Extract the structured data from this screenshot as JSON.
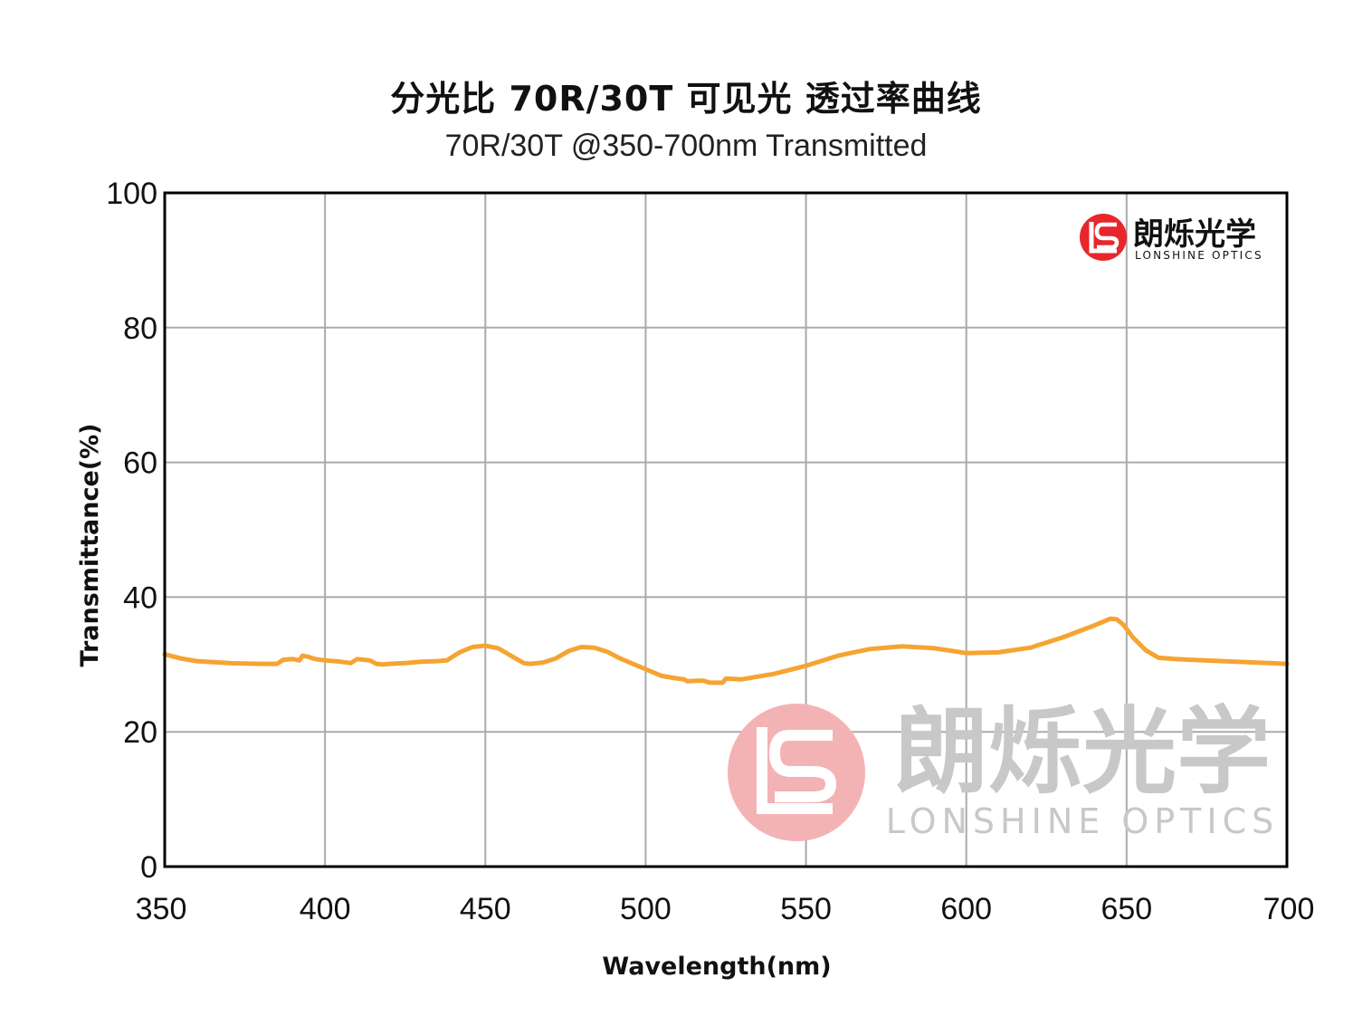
{
  "title": "分光比 70R/30T 可见光 透过率曲线",
  "subtitle": "70R/30T @350-700nm  Transmitted",
  "logo": {
    "name_cn": "朗烁光学",
    "name_en": "LONSHINE OPTICS"
  },
  "watermark": {
    "name_cn": "朗烁光学",
    "name_en": "LONSHINE OPTICS"
  },
  "colors": {
    "curve": "#f5a432",
    "logo_red": "#e8262b",
    "watermark_pink": "#f3b3b5",
    "watermark_gray": "#c8c8c8",
    "grid": "#aaaaaa"
  },
  "chart_data": {
    "type": "line",
    "xlabel": "Wavelength(nm)",
    "ylabel": "Transmittance(%)",
    "xlim": [
      350,
      700
    ],
    "ylim": [
      0,
      100
    ],
    "xticks": [
      350,
      400,
      450,
      500,
      550,
      600,
      650,
      700
    ],
    "yticks": [
      0,
      20,
      40,
      60,
      80,
      100
    ],
    "grid": true,
    "series": [
      {
        "x": [
          350,
          355,
          360,
          370,
          380,
          385,
          387,
          390,
          392,
          393,
          395,
          397,
          400,
          405,
          408,
          410,
          414,
          416,
          418,
          420,
          425,
          430,
          435,
          438,
          442,
          446,
          450,
          454,
          458,
          462,
          464,
          468,
          472,
          476,
          480,
          484,
          488,
          492,
          496,
          500,
          505,
          510,
          512,
          513,
          516,
          518,
          520,
          524,
          525,
          530,
          540,
          550,
          560,
          570,
          580,
          590,
          600,
          610,
          620,
          630,
          640,
          645,
          647,
          649,
          652,
          656,
          660,
          665,
          670,
          680,
          690,
          700
        ],
        "values": [
          31.5,
          30.9,
          30.5,
          30.2,
          30.1,
          30.1,
          30.7,
          30.8,
          30.6,
          31.3,
          31.1,
          30.8,
          30.6,
          30.4,
          30.2,
          30.8,
          30.6,
          30.1,
          30.0,
          30.1,
          30.2,
          30.4,
          30.5,
          30.6,
          31.8,
          32.6,
          32.8,
          32.4,
          31.3,
          30.2,
          30.1,
          30.3,
          30.9,
          32.0,
          32.6,
          32.5,
          31.9,
          30.9,
          30.1,
          29.3,
          28.3,
          27.9,
          27.8,
          27.5,
          27.6,
          27.6,
          27.3,
          27.3,
          27.9,
          27.8,
          28.6,
          29.8,
          31.3,
          32.3,
          32.7,
          32.4,
          31.7,
          31.8,
          32.5,
          34.0,
          35.8,
          36.8,
          36.7,
          35.9,
          34.0,
          32.1,
          31.0,
          30.8,
          30.7,
          30.5,
          30.3,
          30.1
        ]
      }
    ]
  }
}
